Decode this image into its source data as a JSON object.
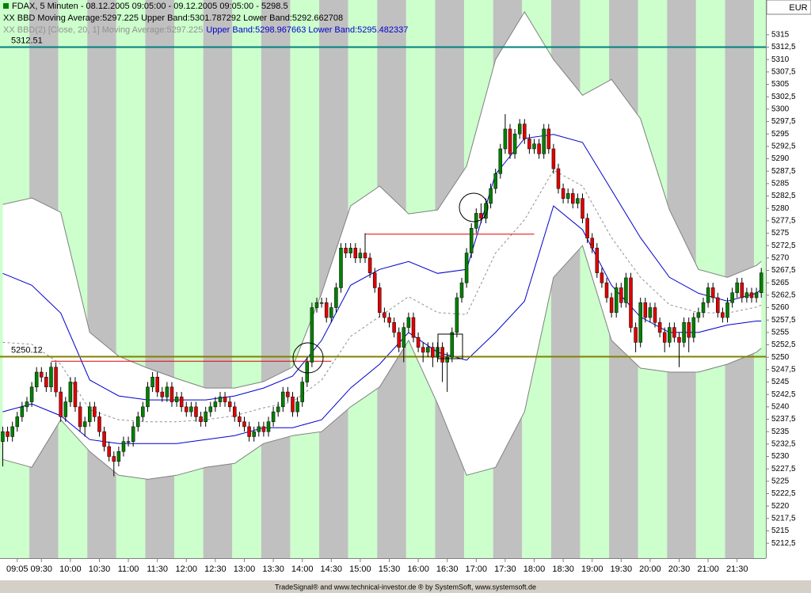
{
  "chart_data": {
    "type": "candlestick",
    "title": "FDAX, 5 Minuten - 08.12.2005 09:05:00 - 09.12.2005 09:05:00 - 5298.5",
    "indicators": [
      "XX BBD Moving Average:5297.225 Upper Band:5301.787292 Lower Band:5292.662708",
      "XX BBD(2) [Close, 20, 1] Moving Average:5297.225",
      "Upper Band:5298.967663 Lower Band:5295.482337"
    ],
    "currency": "EUR",
    "footer": "TradeSignal® and www.technical-investor.de ® by  SystemSoft, www.systemsoft.de",
    "up_color": "#008000",
    "down_color": "#e00000",
    "wick_color": "#000000",
    "stripe_colors": [
      "#ccffcc",
      "#c0c0c0"
    ],
    "xlim": [
      -0.57,
      157.95
    ],
    "ylim": [
      5209.5,
      5322
    ],
    "xticks": [
      {
        "value": 3,
        "label": "09:05"
      },
      {
        "value": 8,
        "label": "09:30"
      },
      {
        "value": 14,
        "label": "10:00"
      },
      {
        "value": 20,
        "label": "10:30"
      },
      {
        "value": 26,
        "label": "11:00"
      },
      {
        "value": 32,
        "label": "11:30"
      },
      {
        "value": 38,
        "label": "12:00"
      },
      {
        "value": 44,
        "label": "12:30"
      },
      {
        "value": 50,
        "label": "13:00"
      },
      {
        "value": 56,
        "label": "13:30"
      },
      {
        "value": 62,
        "label": "14:00"
      },
      {
        "value": 68,
        "label": "14:30"
      },
      {
        "value": 74,
        "label": "15:00"
      },
      {
        "value": 80,
        "label": "15:30"
      },
      {
        "value": 86,
        "label": "16:00"
      },
      {
        "value": 92,
        "label": "16:30"
      },
      {
        "value": 98,
        "label": "17:00"
      },
      {
        "value": 104,
        "label": "17:30"
      },
      {
        "value": 110,
        "label": "18:00"
      },
      {
        "value": 116,
        "label": "18:30"
      },
      {
        "value": 122,
        "label": "19:00"
      },
      {
        "value": 128,
        "label": "19:30"
      },
      {
        "value": 134,
        "label": "20:00"
      },
      {
        "value": 140,
        "label": "20:30"
      },
      {
        "value": 146,
        "label": "21:00"
      },
      {
        "value": 152,
        "label": "21:30"
      }
    ],
    "yticks": [
      {
        "value": 5212.5,
        "label": "5212,5"
      },
      5215,
      {
        "value": 5217.5,
        "label": "5217,5"
      },
      5220,
      {
        "value": 5222.5,
        "label": "5222,5"
      },
      5225,
      {
        "value": 5227.5,
        "label": "5227,5"
      },
      5230,
      {
        "value": 5232.5,
        "label": "5232,5"
      },
      5235,
      {
        "value": 5237.5,
        "label": "5237,5"
      },
      5240,
      {
        "value": 5242.5,
        "label": "5242,5"
      },
      5245,
      {
        "value": 5247.5,
        "label": "5247,5"
      },
      5250,
      {
        "value": 5252.5,
        "label": "5252,5"
      },
      5255,
      {
        "value": 5257.5,
        "label": "5257,5"
      },
      5260,
      {
        "value": 5262.5,
        "label": "5262,5"
      },
      5265,
      {
        "value": 5267.5,
        "label": "5267,5"
      },
      5270,
      {
        "value": 5272.5,
        "label": "5272,5"
      },
      5275,
      {
        "value": 5277.5,
        "label": "5277,5"
      },
      5280,
      {
        "value": 5282.5,
        "label": "5282,5"
      },
      5285,
      {
        "value": 5287.5,
        "label": "5287,5"
      },
      5290,
      {
        "value": 5292.5,
        "label": "5292,5"
      },
      5295,
      {
        "value": 5297.5,
        "label": "5297,5"
      },
      5300,
      {
        "value": 5302.5,
        "label": "5302,5"
      },
      5305,
      {
        "value": 5307.5,
        "label": "5307,5"
      },
      5310,
      {
        "value": 5312.5,
        "label": "5312,5"
      },
      5315
    ],
    "open": [
      5233,
      5235,
      5234,
      5236,
      5238,
      5240,
      5241,
      5244,
      5247,
      5246,
      5244,
      5248,
      5243,
      5238,
      5241,
      5245,
      5240,
      5236,
      5237,
      5240,
      5238,
      5235,
      5232,
      5230,
      5229,
      5231,
      5233,
      5233,
      5236,
      5238,
      5240,
      5244,
      5246,
      5243,
      5242,
      5244,
      5241,
      5242,
      5240,
      5239,
      5240,
      5238,
      5237,
      5239,
      5240,
      5241,
      5242,
      5241,
      5240,
      5238,
      5237,
      5236,
      5234,
      5235,
      5236,
      5235,
      5237,
      5239,
      5240,
      5243,
      5242,
      5239,
      5241,
      5245,
      5249,
      5260,
      5261,
      5261,
      5258,
      5260,
      5264,
      5272,
      5271,
      5272,
      5270,
      5271,
      5270,
      5267,
      5264,
      5259,
      5258,
      5257,
      5255,
      5252,
      5256,
      5258,
      5254,
      5252,
      5251,
      5252,
      5250,
      5252,
      5249,
      5250,
      5255,
      5262,
      5265,
      5271,
      5276,
      5279,
      5278,
      5281,
      5284,
      5287,
      5292,
      5296,
      5291,
      5295,
      5297,
      5294,
      5292,
      5293,
      5291,
      5296,
      5292,
      5288,
      5284,
      5282,
      5283,
      5281,
      5282,
      5278,
      5274,
      5272,
      5267,
      5265,
      5262,
      5259,
      5264,
      5261,
      5266,
      5256,
      5253,
      5261,
      5258,
      5260,
      5257,
      5255,
      5253,
      5256,
      5254,
      5253,
      5257,
      5254,
      5258,
      5259,
      5261,
      5264,
      5262,
      5259,
      5258,
      5261,
      5263,
      5265,
      5262,
      5263,
      5262,
      5263
    ],
    "high": [
      5236,
      5236,
      5237,
      5239,
      5241,
      5242,
      5245,
      5248,
      5248,
      5247,
      5249,
      5249,
      5244,
      5242,
      5246,
      5246,
      5241,
      5238,
      5241,
      5241,
      5239,
      5236,
      5233,
      5231,
      5232,
      5234,
      5234,
      5237,
      5239,
      5241,
      5245,
      5247,
      5247,
      5244,
      5245,
      5245,
      5243,
      5243,
      5241,
      5241,
      5241,
      5239,
      5240,
      5241,
      5242,
      5243,
      5243,
      5242,
      5241,
      5239,
      5238,
      5237,
      5236,
      5237,
      5237,
      5238,
      5240,
      5241,
      5244,
      5244,
      5243,
      5242,
      5246,
      5250,
      5261,
      5262,
      5262,
      5262,
      5261,
      5265,
      5273,
      5273,
      5273,
      5273,
      5272,
      5275,
      5271,
      5268,
      5265,
      5260,
      5259,
      5258,
      5256,
      5257,
      5259,
      5259,
      5255,
      5253,
      5253,
      5253,
      5253,
      5253,
      5251,
      5256,
      5263,
      5266,
      5272,
      5277,
      5280,
      5281,
      5282,
      5285,
      5288,
      5293,
      5299,
      5297,
      5296,
      5298,
      5298,
      5295,
      5294,
      5294,
      5297,
      5297,
      5293,
      5289,
      5285,
      5284,
      5284,
      5283,
      5283,
      5279,
      5275,
      5273,
      5268,
      5266,
      5263,
      5265,
      5265,
      5267,
      5267,
      5257,
      5262,
      5262,
      5261,
      5261,
      5258,
      5256,
      5257,
      5257,
      5255,
      5258,
      5258,
      5259,
      5260,
      5262,
      5265,
      5265,
      5263,
      5260,
      5262,
      5264,
      5266,
      5266,
      5264,
      5264,
      5264,
      5268
    ],
    "low": [
      5228,
      5233,
      5233,
      5235,
      5237,
      5239,
      5240,
      5243,
      5245,
      5243,
      5243,
      5242,
      5237,
      5237,
      5240,
      5239,
      5235,
      5234,
      5236,
      5237,
      5234,
      5231,
      5229,
      5226,
      5228,
      5230,
      5232,
      5232,
      5235,
      5237,
      5239,
      5243,
      5242,
      5241,
      5241,
      5240,
      5240,
      5239,
      5238,
      5238,
      5237,
      5236,
      5236,
      5238,
      5239,
      5240,
      5240,
      5239,
      5237,
      5236,
      5235,
      5233,
      5233,
      5234,
      5234,
      5234,
      5236,
      5238,
      5239,
      5241,
      5238,
      5238,
      5240,
      5244,
      5248,
      5259,
      5260,
      5257,
      5257,
      5259,
      5263,
      5270,
      5270,
      5269,
      5269,
      5269,
      5266,
      5263,
      5258,
      5257,
      5256,
      5254,
      5251,
      5249,
      5255,
      5253,
      5251,
      5249,
      5250,
      5248,
      5249,
      5245,
      5243,
      5249,
      5254,
      5261,
      5264,
      5270,
      5275,
      5277,
      5277,
      5280,
      5283,
      5286,
      5291,
      5290,
      5290,
      5294,
      5293,
      5291,
      5291,
      5290,
      5290,
      5291,
      5287,
      5283,
      5281,
      5281,
      5280,
      5280,
      5277,
      5273,
      5271,
      5266,
      5264,
      5261,
      5258,
      5258,
      5260,
      5260,
      5255,
      5251,
      5252,
      5257,
      5257,
      5256,
      5254,
      5251,
      5252,
      5253,
      5248,
      5252,
      5251,
      5253,
      5257,
      5258,
      5260,
      5261,
      5258,
      5257,
      5257,
      5260,
      5262,
      5261,
      5261,
      5261,
      5261,
      5262
    ],
    "close": [
      5235,
      5234,
      5236,
      5238,
      5240,
      5241,
      5244,
      5247,
      5246,
      5244,
      5248,
      5243,
      5238,
      5241,
      5245,
      5240,
      5236,
      5237,
      5240,
      5238,
      5235,
      5232,
      5230,
      5229,
      5231,
      5233,
      5233,
      5236,
      5238,
      5240,
      5244,
      5246,
      5243,
      5242,
      5244,
      5241,
      5242,
      5240,
      5239,
      5240,
      5238,
      5237,
      5239,
      5240,
      5241,
      5242,
      5241,
      5240,
      5238,
      5237,
      5236,
      5234,
      5235,
      5236,
      5235,
      5237,
      5239,
      5240,
      5243,
      5242,
      5239,
      5241,
      5245,
      5249,
      5260,
      5261,
      5261,
      5258,
      5260,
      5264,
      5272,
      5271,
      5272,
      5270,
      5271,
      5270,
      5267,
      5264,
      5259,
      5258,
      5257,
      5255,
      5252,
      5256,
      5258,
      5254,
      5252,
      5251,
      5252,
      5250,
      5252,
      5249,
      5250,
      5255,
      5262,
      5265,
      5271,
      5276,
      5279,
      5278,
      5281,
      5284,
      5287,
      5292,
      5296,
      5291,
      5295,
      5297,
      5294,
      5292,
      5293,
      5291,
      5296,
      5292,
      5288,
      5284,
      5282,
      5283,
      5281,
      5282,
      5278,
      5274,
      5272,
      5267,
      5265,
      5262,
      5259,
      5264,
      5261,
      5266,
      5256,
      5253,
      5261,
      5258,
      5260,
      5257,
      5255,
      5253,
      5256,
      5254,
      5253,
      5257,
      5254,
      5258,
      5259,
      5261,
      5264,
      5262,
      5259,
      5258,
      5261,
      5263,
      5265,
      5262,
      5263,
      5262,
      5263,
      5267
    ],
    "band_x": [
      0,
      6,
      12,
      18,
      24,
      30,
      36,
      42,
      48,
      54,
      60,
      66,
      72,
      78,
      84,
      90,
      96,
      102,
      108,
      114,
      120,
      126,
      132,
      138,
      144,
      150,
      156,
      157
    ],
    "envelope_fill": "#ffffff",
    "series": [
      {
        "color": "#808080",
        "style": "solid",
        "values": [
          5280.8,
          5282.1,
          5279.2,
          5255.0,
          5250.2,
          5247.8,
          5245.7,
          5243.8,
          5243.8,
          5245.1,
          5248.0,
          5262.9,
          5280.5,
          5284.5,
          5278.9,
          5279.7,
          5288.5,
          5310.0,
          5319.6,
          5310.0,
          5302.8,
          5306.0,
          5298.1,
          5279.7,
          5267.7,
          5266.1,
          5268.5,
          5269.3
        ]
      },
      {
        "color": "#808080",
        "style": "solid",
        "values": [
          5229.4,
          5227.8,
          5237.4,
          5231.0,
          5226.2,
          5225.4,
          5226.2,
          5227.8,
          5228.6,
          5232.6,
          5234.2,
          5235.0,
          5240.0,
          5244.0,
          5253.4,
          5240.6,
          5226.2,
          5227.8,
          5239.0,
          5266.1,
          5272.5,
          5253.4,
          5247.8,
          5247.0,
          5247.0,
          5248.6,
          5251.0,
          5251.8
        ]
      },
      {
        "color": "#0000cc",
        "style": "solid",
        "values": [
          5266.9,
          5264.5,
          5258.9,
          5245.4,
          5242.2,
          5241.4,
          5241.4,
          5241.4,
          5242.2,
          5243.8,
          5246.2,
          5253.4,
          5264.5,
          5267.7,
          5269.3,
          5266.9,
          5267.7,
          5286.9,
          5294.1,
          5294.9,
          5293.3,
          5283.7,
          5274.1,
          5266.1,
          5262.9,
          5261.3,
          5262.9,
          5263.7
        ]
      },
      {
        "color": "#0000cc",
        "style": "solid",
        "values": [
          5239.0,
          5240.6,
          5238.2,
          5233.4,
          5232.6,
          5232.6,
          5232.6,
          5233.4,
          5234.2,
          5235.8,
          5235.8,
          5237.4,
          5243.8,
          5248.6,
          5255.0,
          5251.0,
          5249.4,
          5255.0,
          5261.3,
          5280.5,
          5275.7,
          5264.5,
          5258.1,
          5255.0,
          5255.0,
          5256.5,
          5257.3,
          5257.3
        ]
      },
      {
        "color": "#909090",
        "style": "dashed",
        "values": [
          5253.0,
          5252.6,
          5248.6,
          5239.4,
          5237.4,
          5237.0,
          5237.0,
          5237.4,
          5238.2,
          5239.8,
          5241.0,
          5245.4,
          5254.2,
          5258.2,
          5262.2,
          5259.0,
          5258.6,
          5271.0,
          5277.7,
          5287.7,
          5284.5,
          5274.1,
          5266.1,
          5260.6,
          5259.0,
          5258.9,
          5260.1,
          5260.5
        ]
      }
    ],
    "hlines": [
      {
        "value": 5312.51,
        "color": "#008080"
      },
      {
        "value": 5250.12,
        "color": "#808000"
      }
    ],
    "segments": [
      {
        "from": 10,
        "to": 68,
        "value": 5249.2,
        "color": "#e00000"
      },
      {
        "from": 75,
        "to": 110,
        "value": 5274.8,
        "color": "#e00000"
      }
    ]
  }
}
